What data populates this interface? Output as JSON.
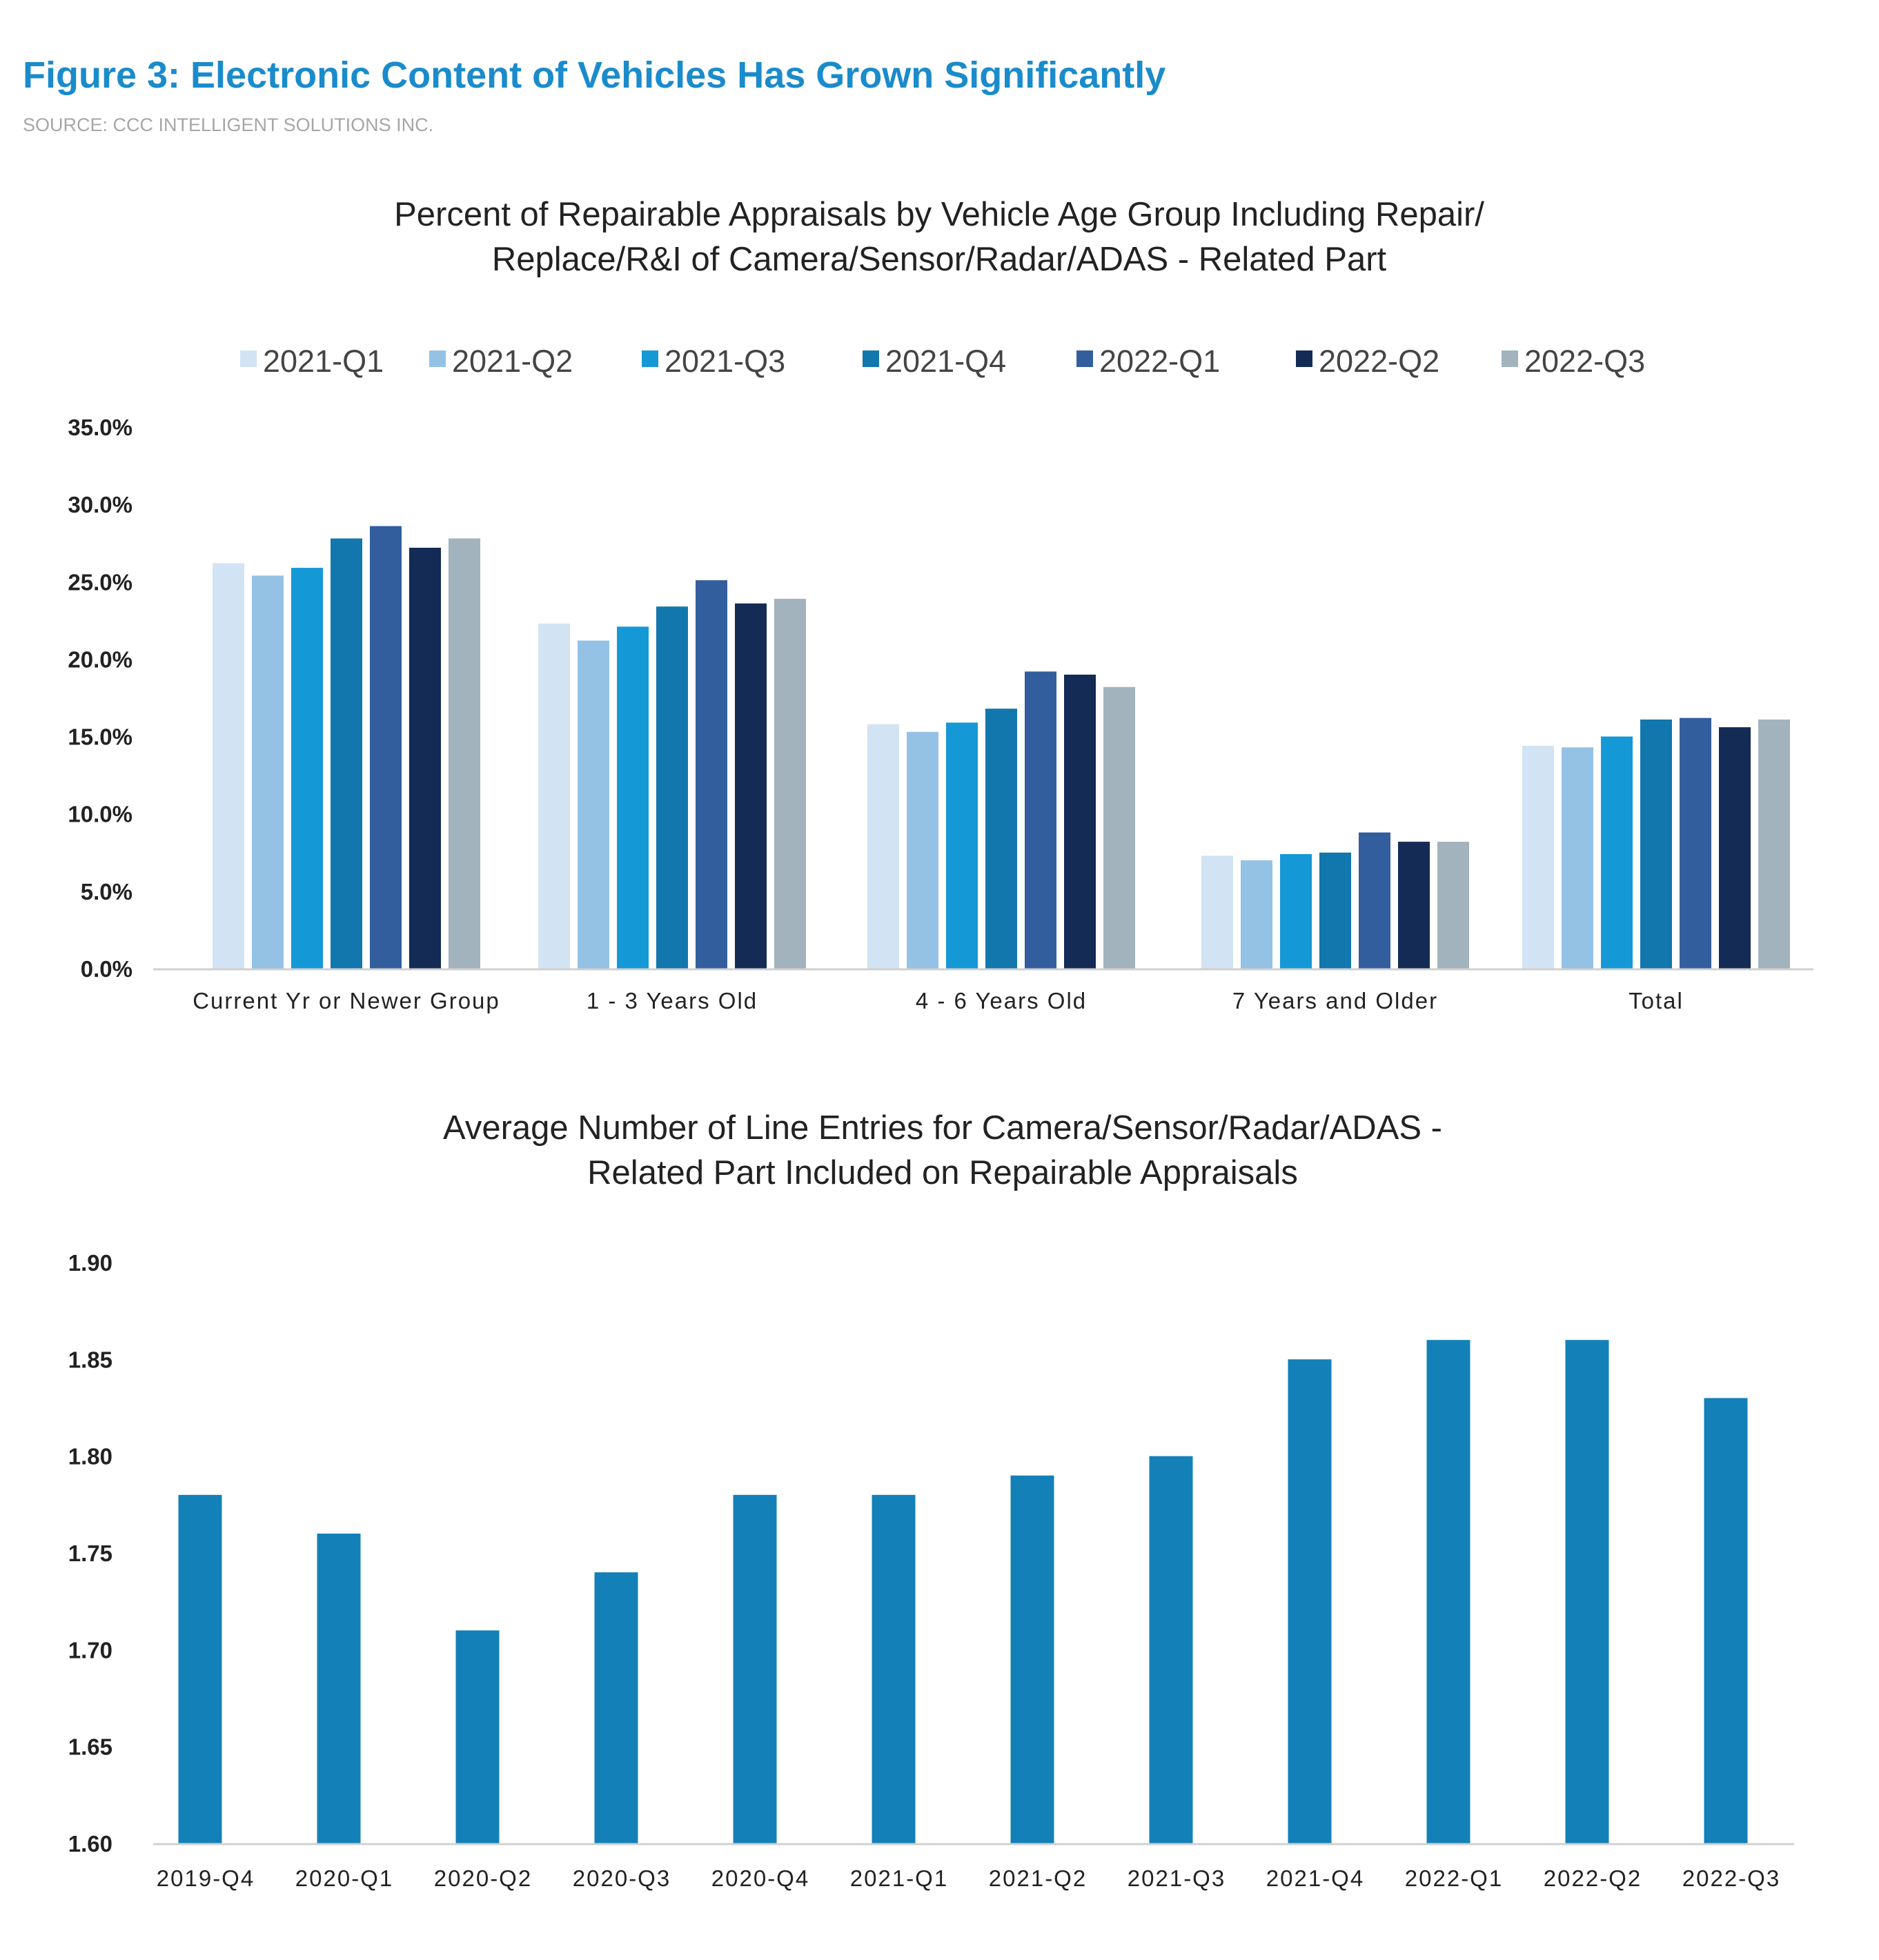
{
  "figure": {
    "title": "Figure 3: Electronic Content of Vehicles Has Grown Significantly",
    "source": "SOURCE: CCC INTELLIGENT SOLUTIONS INC."
  },
  "chart_data": [
    {
      "type": "bar",
      "title": "Percent of Repairable Appraisals by Vehicle Age Group Including Repair/\nReplace/R&I of Camera/Sensor/Radar/ADAS - Related Part",
      "title_lines": [
        "Percent of Repairable Appraisals by Vehicle Age Group Including Repair/",
        "Replace/R&I of Camera/Sensor/Radar/ADAS - Related Part"
      ],
      "categories": [
        "Current Yr or Newer Group",
        "1 - 3 Years Old",
        "4 - 6 Years Old",
        "7 Years and Older",
        "Total"
      ],
      "series": [
        {
          "name": "2021-Q1",
          "color": "#d2e4f4",
          "values": [
            26.2,
            22.3,
            15.8,
            7.3,
            14.4
          ]
        },
        {
          "name": "2021-Q2",
          "color": "#94c2e5",
          "values": [
            25.4,
            21.2,
            15.3,
            7.0,
            14.3
          ]
        },
        {
          "name": "2021-Q3",
          "color": "#1598d6",
          "values": [
            25.9,
            22.1,
            15.9,
            7.4,
            15.0
          ]
        },
        {
          "name": "2021-Q4",
          "color": "#1177ac",
          "values": [
            27.8,
            23.4,
            16.8,
            7.5,
            16.1
          ]
        },
        {
          "name": "2022-Q1",
          "color": "#325e9e",
          "values": [
            28.6,
            25.1,
            19.2,
            8.8,
            16.2
          ]
        },
        {
          "name": "2022-Q2",
          "color": "#132b55",
          "values": [
            27.2,
            23.6,
            19.0,
            8.2,
            15.6
          ]
        },
        {
          "name": "2022-Q3",
          "color": "#a2b3bd",
          "values": [
            27.8,
            23.9,
            18.2,
            8.2,
            16.1
          ]
        }
      ],
      "ylim": [
        0,
        35
      ],
      "y_ticks": [
        "0.0%",
        "5.0%",
        "10.0%",
        "15.0%",
        "20.0%",
        "25.0%",
        "30.0%",
        "35.0%"
      ],
      "legend_position": "top",
      "grid": false
    },
    {
      "type": "bar",
      "title": "Average Number of Line Entries for Camera/Sensor/Radar/ADAS -\nRelated Part Included on Repairable Appraisals",
      "title_lines": [
        "Average Number of Line Entries for Camera/Sensor/Radar/ADAS -",
        "Related Part Included on Repairable Appraisals"
      ],
      "categories": [
        "2019-Q4",
        "2020-Q1",
        "2020-Q2",
        "2020-Q3",
        "2020-Q4",
        "2021-Q1",
        "2021-Q2",
        "2021-Q3",
        "2021-Q4",
        "2022-Q1",
        "2022-Q2",
        "2022-Q3"
      ],
      "values": [
        1.78,
        1.76,
        1.71,
        1.74,
        1.78,
        1.78,
        1.79,
        1.8,
        1.85,
        1.86,
        1.86,
        1.83
      ],
      "color": "#1380b8",
      "ylim": [
        1.6,
        1.9
      ],
      "y_ticks": [
        "1.60",
        "1.65",
        "1.70",
        "1.75",
        "1.80",
        "1.85",
        "1.90"
      ],
      "grid": false
    }
  ]
}
